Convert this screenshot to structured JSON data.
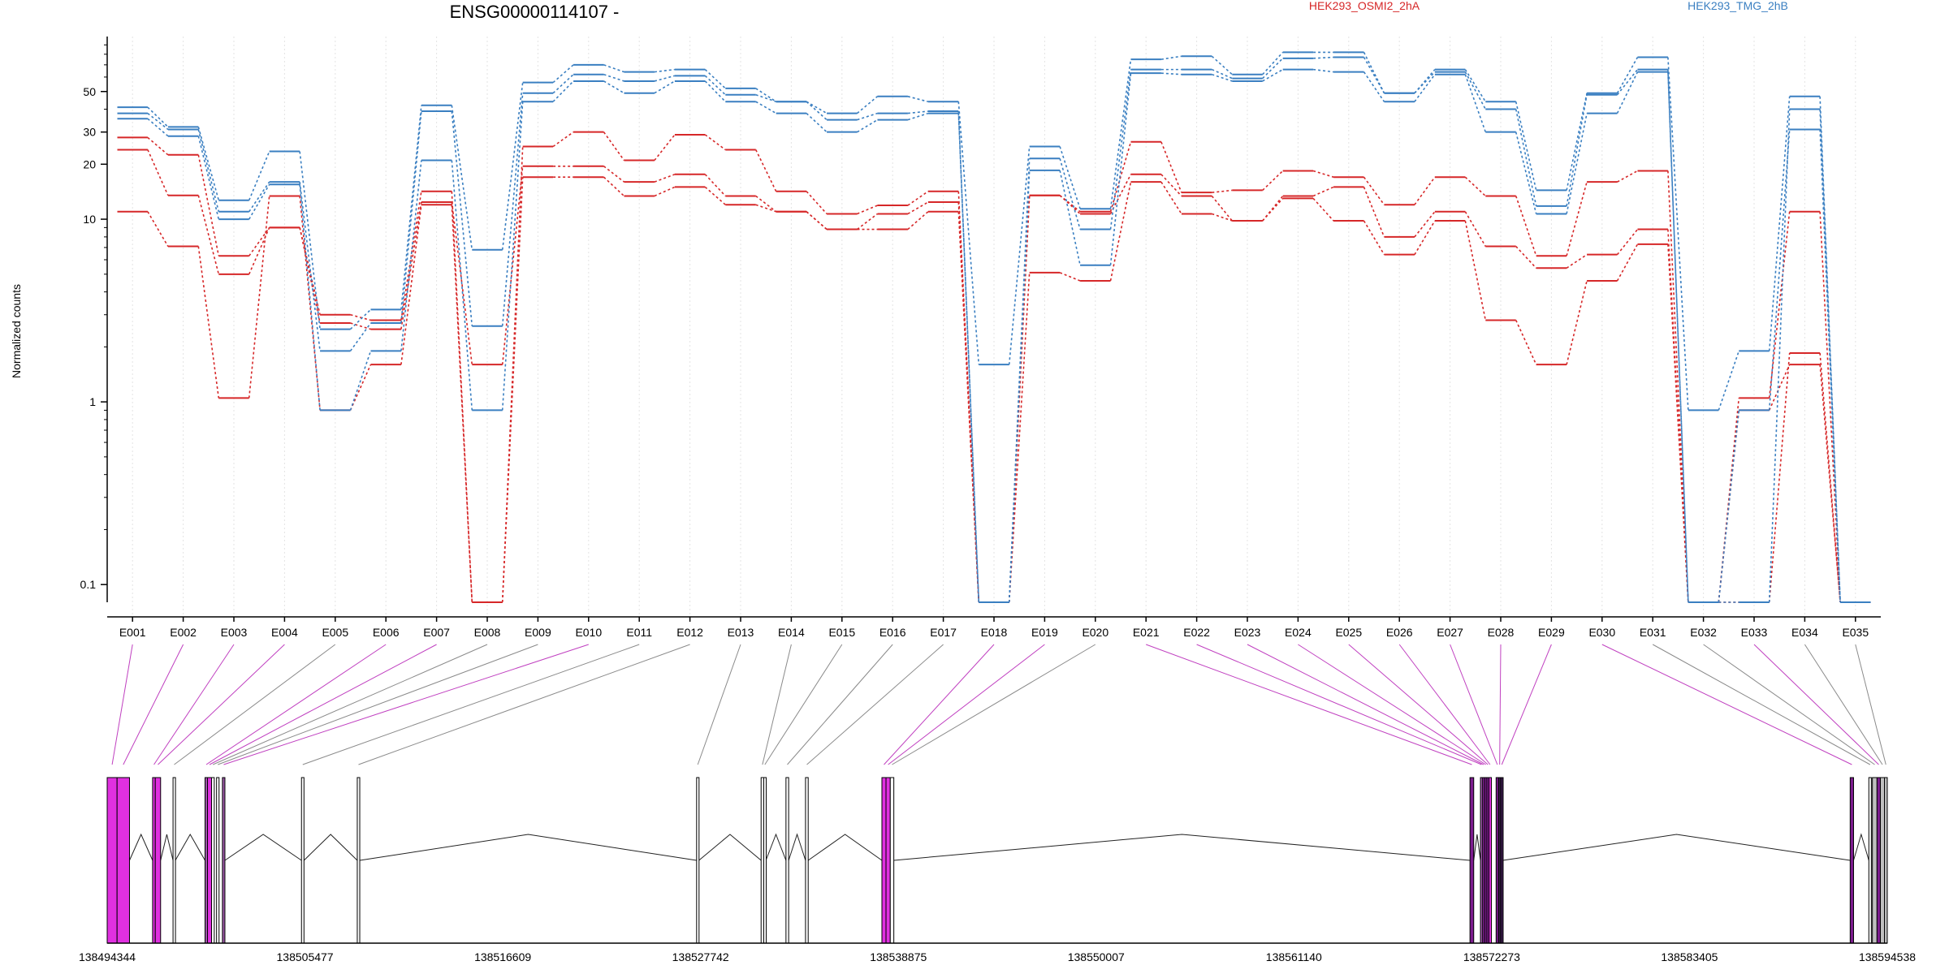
{
  "chart_data": {
    "type": "line",
    "title": "ENSG00000114107 -",
    "ylabel": "Normalized counts",
    "y_scale": "log",
    "ylim": [
      0.08,
      100
    ],
    "y_ticks": [
      0.1,
      1,
      10,
      20,
      30,
      50
    ],
    "y_tick_labels": [
      "0.1",
      "1",
      "10",
      "20",
      "30",
      "50"
    ],
    "categories": [
      "E001",
      "E002",
      "E003",
      "E004",
      "E005",
      "E006",
      "E007",
      "E008",
      "E009",
      "E010",
      "E011",
      "E012",
      "E013",
      "E014",
      "E015",
      "E016",
      "E017",
      "E018",
      "E019",
      "E020",
      "E021",
      "E022",
      "E023",
      "E024",
      "E025",
      "E026",
      "E027",
      "E028",
      "E029",
      "E030",
      "E031",
      "E032",
      "E033",
      "E034",
      "E035"
    ],
    "legend": [
      {
        "label": "HEK293_OSMI2_2hA",
        "color": "#d62728"
      },
      {
        "label": "HEK293_TMG_2hB",
        "color": "#3a7fc1"
      }
    ],
    "series": [
      {
        "group": "HEK293_OSMI2_2hA",
        "color": "#d62728",
        "values": [
          28,
          22.5,
          6.3,
          9,
          3,
          2.8,
          14.2,
          0.08,
          25,
          30,
          21,
          29,
          24,
          14.2,
          10.7,
          11.9,
          14.2,
          0.08,
          13.5,
          11,
          26.5,
          14,
          14.4,
          18.4,
          17,
          12,
          17,
          13.4,
          6.3,
          16,
          18.4,
          0.08,
          1.05,
          11,
          0.08
        ]
      },
      {
        "group": "HEK293_OSMI2_2hA",
        "color": "#d62728",
        "values": [
          24,
          13.5,
          5,
          9,
          2.7,
          2.5,
          12.4,
          1.6,
          19.5,
          19.5,
          16,
          17.6,
          13.4,
          11,
          8.8,
          10.7,
          12.4,
          0.08,
          13.5,
          10.7,
          17.6,
          13.4,
          9.8,
          13.4,
          15,
          8,
          11,
          7.1,
          5.4,
          6.4,
          8.8,
          0.08,
          0.08,
          1.85,
          0.08
        ]
      },
      {
        "group": "HEK293_OSMI2_2hA",
        "color": "#d62728",
        "values": [
          11,
          7.1,
          1.05,
          13.4,
          0.9,
          1.6,
          12,
          0.08,
          17,
          17,
          13.4,
          15,
          12,
          11,
          8.8,
          8.8,
          11,
          0.08,
          5.1,
          4.6,
          16,
          10.7,
          9.8,
          13,
          9.8,
          6.4,
          9.8,
          2.8,
          1.6,
          4.6,
          7.3,
          0.08,
          0.9,
          1.6,
          0.08
        ]
      },
      {
        "group": "HEK293_TMG_2hB",
        "color": "#3a7fc1",
        "values": [
          41,
          32,
          12.7,
          23.5,
          2.5,
          3.2,
          42,
          6.8,
          56,
          70,
          64,
          66,
          52,
          44,
          38,
          47,
          44,
          1.6,
          25,
          11.4,
          75,
          78,
          62,
          82,
          82,
          49,
          66,
          44,
          14.4,
          49,
          77,
          0.9,
          1.9,
          47,
          0.08
        ]
      },
      {
        "group": "HEK293_TMG_2hB",
        "color": "#3a7fc1",
        "values": [
          38,
          31,
          11,
          16,
          1.9,
          2.7,
          39,
          2.6,
          49,
          62,
          57,
          61,
          48,
          44,
          35,
          38,
          39,
          0.08,
          21.5,
          8.8,
          66,
          66,
          59,
          76,
          77,
          49,
          64,
          40,
          11.8,
          48,
          66,
          0.08,
          0.08,
          40,
          0.08
        ]
      },
      {
        "group": "HEK293_TMG_2hB",
        "color": "#3a7fc1",
        "values": [
          35.5,
          28.5,
          10,
          15.5,
          0.9,
          1.9,
          21,
          0.9,
          44,
          57,
          49,
          57,
          44,
          38,
          30,
          35,
          38,
          0.08,
          18.5,
          5.6,
          63,
          62,
          57,
          66,
          64,
          44,
          62,
          30,
          10.7,
          38,
          64,
          0.08,
          0.9,
          31,
          0.08
        ]
      }
    ],
    "coordinate_axis": {
      "tick_labels": [
        "138494344",
        "138505477",
        "138516609",
        "138527742",
        "138538875",
        "138550007",
        "138561140",
        "138572273",
        "138583405",
        "138594538"
      ]
    },
    "gene_model": {
      "exons": [
        {
          "id": "E001",
          "start": 138494344,
          "end": 138494900,
          "color": "#e030e0"
        },
        {
          "id": "E002",
          "start": 138494900,
          "end": 138495600,
          "color": "#e030e0"
        },
        {
          "id": "E003",
          "start": 138496900,
          "end": 138497050,
          "color": "#e030e0"
        },
        {
          "id": "E004",
          "start": 138497050,
          "end": 138497350,
          "color": "#e030e0"
        },
        {
          "id": "E005",
          "start": 138498050,
          "end": 138498180,
          "color": "#ffffff"
        },
        {
          "id": "E006",
          "start": 138499850,
          "end": 138499990,
          "color": "#9c58a8"
        },
        {
          "id": "E007",
          "start": 138499990,
          "end": 138500220,
          "color": "#e030e0"
        },
        {
          "id": "E008",
          "start": 138500220,
          "end": 138500370,
          "color": "#ffffff"
        },
        {
          "id": "E009",
          "start": 138500500,
          "end": 138500640,
          "color": "#ffffff"
        },
        {
          "id": "E010",
          "start": 138500830,
          "end": 138500970,
          "color": "#9c58a8"
        },
        {
          "id": "E011",
          "start": 138505280,
          "end": 138505420,
          "color": "#ffffff"
        },
        {
          "id": "E012",
          "start": 138508420,
          "end": 138508560,
          "color": "#ffffff"
        },
        {
          "id": "E013",
          "start": 138527520,
          "end": 138527650,
          "color": "#ffffff"
        },
        {
          "id": "E014",
          "start": 138531150,
          "end": 138531300,
          "color": "#ffffff"
        },
        {
          "id": "E015",
          "start": 138531300,
          "end": 138531420,
          "color": "#ffffff"
        },
        {
          "id": "E016",
          "start": 138532550,
          "end": 138532700,
          "color": "#ffffff"
        },
        {
          "id": "E017",
          "start": 138533650,
          "end": 138533800,
          "color": "#ffffff"
        },
        {
          "id": "E018",
          "start": 138537950,
          "end": 138538180,
          "color": "#e030e0"
        },
        {
          "id": "E019",
          "start": 138538180,
          "end": 138538420,
          "color": "#e030e0"
        },
        {
          "id": "E020",
          "start": 138538420,
          "end": 138538620,
          "color": "#ffffff"
        },
        {
          "id": "E021",
          "start": 138571050,
          "end": 138571260,
          "color": "#7c1c8e"
        },
        {
          "id": "E022",
          "start": 138571640,
          "end": 138571760,
          "color": "#9c58a8"
        },
        {
          "id": "E023",
          "start": 138571760,
          "end": 138571880,
          "color": "#7c1c8e"
        },
        {
          "id": "E024",
          "start": 138571880,
          "end": 138572000,
          "color": "#7c1c8e"
        },
        {
          "id": "E025",
          "start": 138572000,
          "end": 138572120,
          "color": "#7c1c8e"
        },
        {
          "id": "E026",
          "start": 138572120,
          "end": 138572240,
          "color": "#e030e0"
        },
        {
          "id": "E027",
          "start": 138572520,
          "end": 138572660,
          "color": "#7c1c8e"
        },
        {
          "id": "E028",
          "start": 138572660,
          "end": 138572780,
          "color": "#3a1a4a"
        },
        {
          "id": "E029",
          "start": 138572780,
          "end": 138572900,
          "color": "#3a1a4a"
        },
        {
          "id": "E030",
          "start": 138592450,
          "end": 138592640,
          "color": "#7c1c8e"
        },
        {
          "id": "E031",
          "start": 138593500,
          "end": 138593640,
          "color": "#ffffff"
        },
        {
          "id": "E032",
          "start": 138593700,
          "end": 138593960,
          "color": "#c0c0c0"
        },
        {
          "id": "E033",
          "start": 138593960,
          "end": 138594150,
          "color": "#7c1c8e"
        },
        {
          "id": "E034",
          "start": 138594150,
          "end": 138594380,
          "color": "#c0c0c0"
        },
        {
          "id": "E035",
          "start": 138594380,
          "end": 138594538,
          "color": "#c0c0c0"
        }
      ]
    }
  }
}
